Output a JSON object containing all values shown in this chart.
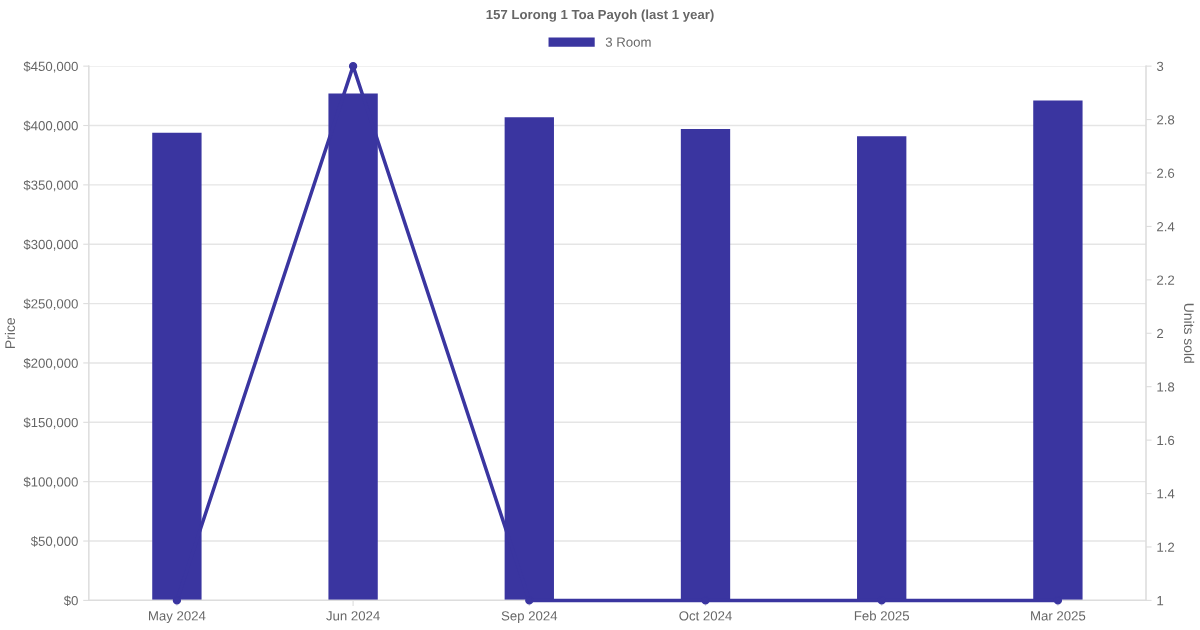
{
  "chart_data": {
    "type": "bar",
    "title": "157 Lorong 1 Toa Payoh (last 1 year)",
    "ylabel": "Price",
    "y2label": "Units sold",
    "categories": [
      "May 2024",
      "Jun 2024",
      "Sep 2024",
      "Oct 2024",
      "Feb 2025",
      "Mar 2025"
    ],
    "series": [
      {
        "name": "3 Room",
        "color": "#3a35a0",
        "values": [
          394000,
          427000,
          407000,
          397000,
          391000,
          421000
        ]
      },
      {
        "type": "line",
        "axis": "y2",
        "color": "#3a35a0",
        "marker": "circle",
        "values": [
          1,
          3,
          1,
          1,
          1,
          1
        ]
      }
    ],
    "ylim": [
      0,
      450000
    ],
    "yticks": [
      {
        "value": 0,
        "label": "$0"
      },
      {
        "value": 50000,
        "label": "$50,000"
      },
      {
        "value": 100000,
        "label": "$100,000"
      },
      {
        "value": 150000,
        "label": "$150,000"
      },
      {
        "value": 200000,
        "label": "$200,000"
      },
      {
        "value": 250000,
        "label": "$250,000"
      },
      {
        "value": 300000,
        "label": "$300,000"
      },
      {
        "value": 350000,
        "label": "$350,000"
      },
      {
        "value": 400000,
        "label": "$400,000"
      },
      {
        "value": 450000,
        "label": "$450,000"
      }
    ],
    "y2lim": [
      1,
      3
    ],
    "y2ticks": [
      1,
      1.2,
      1.4,
      1.6,
      1.8,
      2,
      2.2,
      2.4,
      2.6,
      2.8,
      3
    ],
    "grid": "y",
    "legend": "top"
  }
}
